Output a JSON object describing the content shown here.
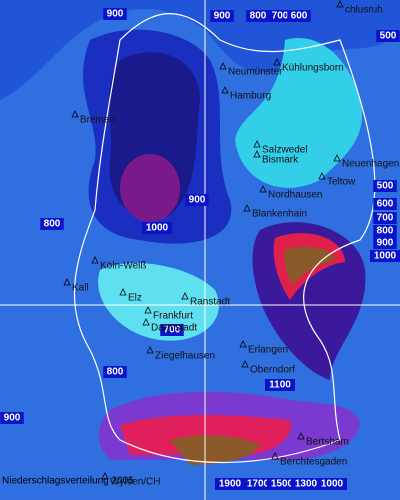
{
  "title": "Niederschlagsverteilung 2005",
  "contour_labels": [
    "900",
    "900",
    "800",
    "700",
    "600",
    "500",
    "500",
    "600",
    "700",
    "800",
    "900",
    "1000",
    "800",
    "1000",
    "900",
    "700",
    "800",
    "1100",
    "900",
    "1900",
    "1700",
    "1500",
    "1300",
    "1000"
  ],
  "places": [
    "chlusruh",
    "Kühlungsborn",
    "Neumünster",
    "Hamburg",
    "Bremen",
    "Salzwedel",
    "Bismark",
    "Teltow",
    "Neuenhagen",
    "Nordhausen",
    "Blankenhain",
    "Köln-Weiß",
    "Kall",
    "Elz",
    "Ranstadt",
    "Frankfurt",
    "Darmstadt",
    "Ziegelhausen",
    "Oberndorf",
    "Erlangen",
    "Bertsham",
    "Berchtesgaden",
    "Wyhlen/CH"
  ]
}
